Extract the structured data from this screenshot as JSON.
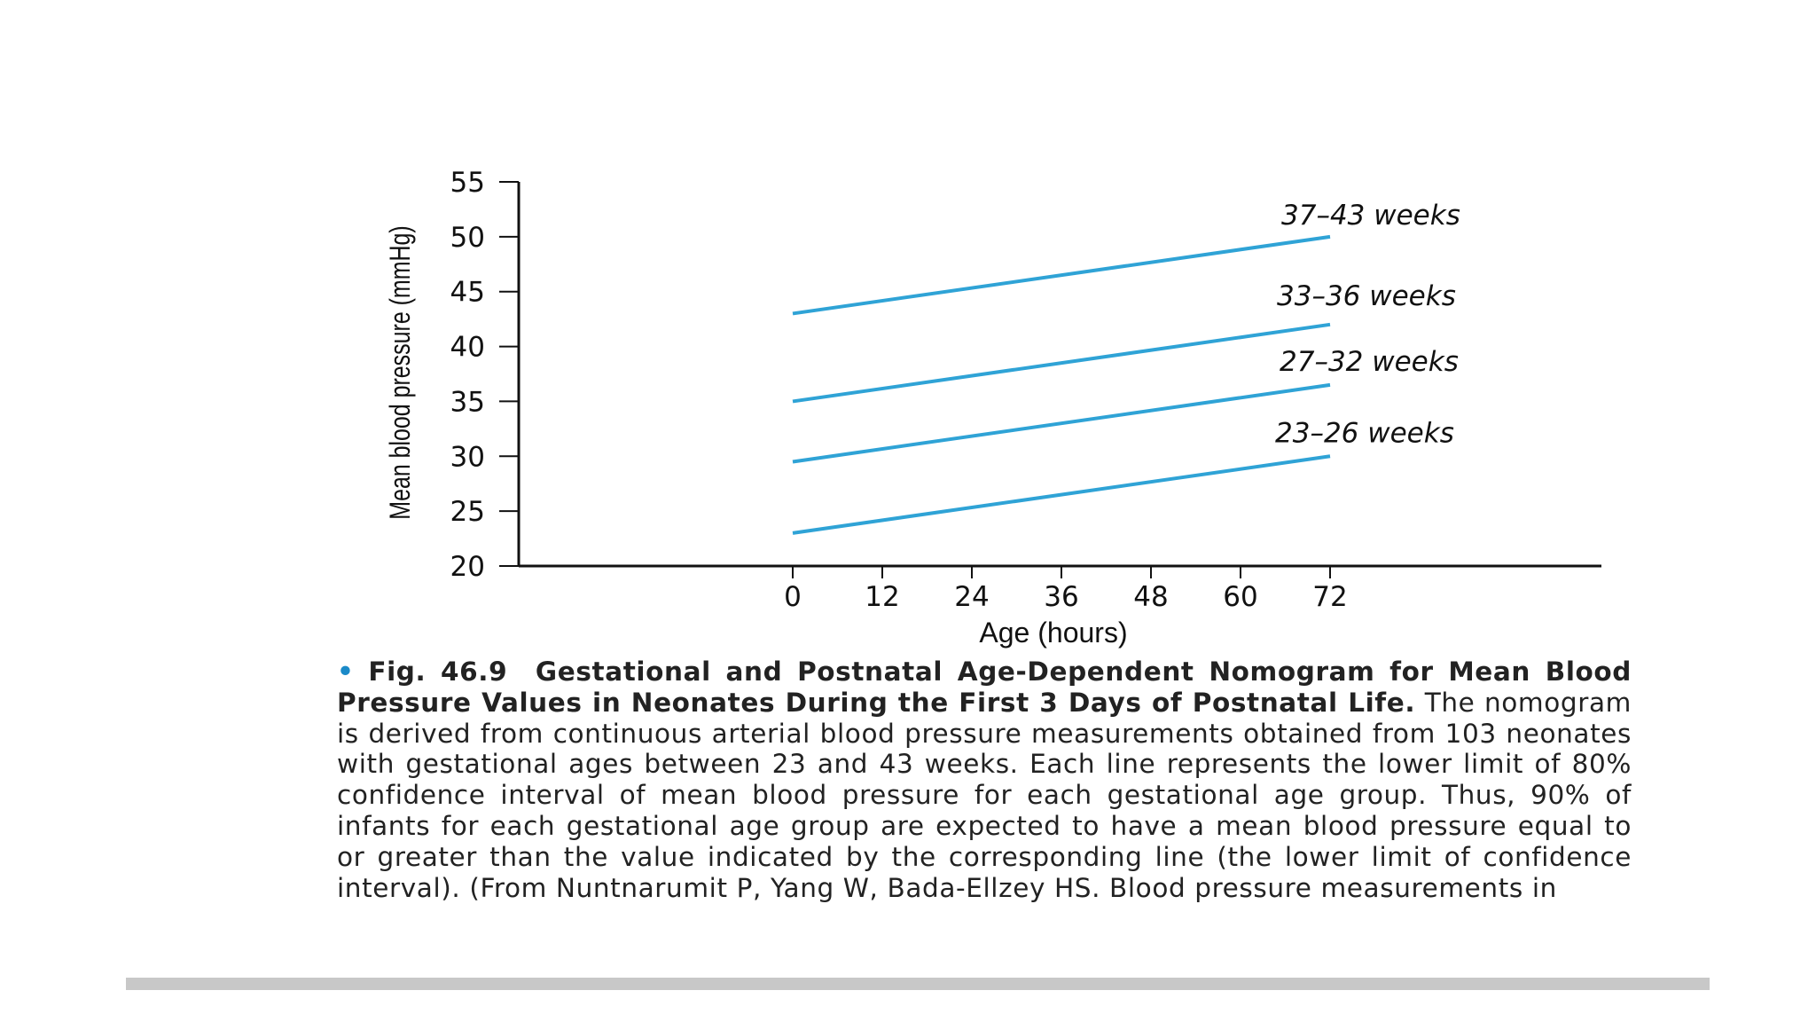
{
  "chart_data": {
    "type": "line",
    "xlabel": "Age (hours)",
    "ylabel": "Mean blood pressure (mmHg)",
    "xlim": [
      0,
      72
    ],
    "ylim": [
      20,
      55
    ],
    "x_ticks": [
      0,
      12,
      24,
      36,
      48,
      60,
      72
    ],
    "y_ticks": [
      20,
      25,
      30,
      35,
      40,
      45,
      50,
      55
    ],
    "grid": false,
    "line_color": "#2fa3d6",
    "series": [
      {
        "name": "37–43 weeks",
        "x": [
          0,
          72
        ],
        "values": [
          43,
          50
        ]
      },
      {
        "name": "33–36 weeks",
        "x": [
          0,
          72
        ],
        "values": [
          35,
          42
        ]
      },
      {
        "name": "27–32 weeks",
        "x": [
          0,
          72
        ],
        "values": [
          29.5,
          36.5
        ]
      },
      {
        "name": "23–26 weeks",
        "x": [
          0,
          72
        ],
        "values": [
          23,
          30
        ]
      }
    ]
  },
  "caption": {
    "bullet": "•",
    "fig_label": "Fig. 46.9",
    "title": "Gestational and Postnatal Age-Dependent Nomogram for Mean Blood Pressure Values in Neonates During the First 3 Days of Postnatal Life.",
    "body": "The nomogram is derived from continuous arterial blood pressure measurements obtained from 103 neonates with gestational ages between 23 and 43 weeks. Each line represents the lower limit of 80% confidence interval of mean blood pressure for each gestational age group. Thus, 90% of infants for each gestational age group are expected to have a mean blood pressure equal to or greater than the value indicated by the corresponding line (the lower limit of confidence interval). (From Nuntnarumit P, Yang W, Bada-Ellzey HS. Blood pressure measurements in"
  }
}
